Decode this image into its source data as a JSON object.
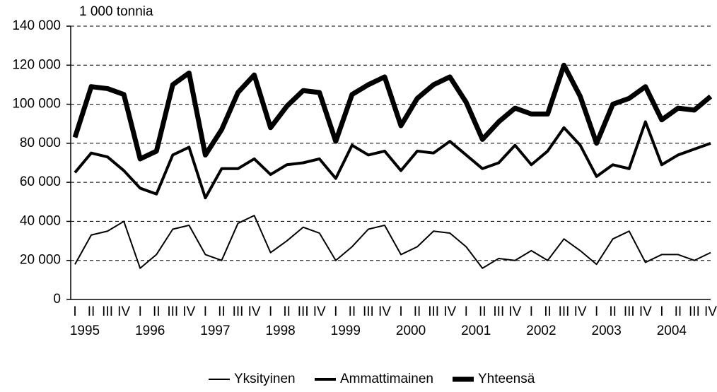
{
  "chart_data": {
    "type": "line",
    "y_axis_label": "1 000 tonnia",
    "categories": [
      "I",
      "II",
      "III",
      "IV",
      "I",
      "II",
      "III",
      "IV",
      "I",
      "II",
      "III",
      "IV",
      "I",
      "II",
      "III",
      "IV",
      "I",
      "II",
      "III",
      "IV",
      "I",
      "II",
      "III",
      "IV",
      "I",
      "II",
      "III",
      "IV",
      "I",
      "II",
      "III",
      "IV",
      "I",
      "II",
      "III",
      "IV",
      "I",
      "II",
      "III",
      "IV"
    ],
    "year_labels": [
      "1995",
      "1996",
      "1997",
      "1998",
      "1999",
      "2000",
      "2001",
      "2002",
      "2003",
      "2004"
    ],
    "ylim": [
      0,
      140000
    ],
    "yticks": [
      0,
      {
        "value": 20000,
        "label": "20 000"
      },
      {
        "value": 40000,
        "label": "40 000"
      },
      {
        "value": 60000,
        "label": "60 000"
      },
      {
        "value": 80000,
        "label": "80 000"
      },
      {
        "value": 100000,
        "label": "100 000"
      },
      {
        "value": 120000,
        "label": "120 000"
      },
      {
        "value": 140000,
        "label": "140 000"
      }
    ],
    "grid": true,
    "legend": "bottom",
    "series": [
      {
        "name": "Yksityinen",
        "color": "#000000",
        "width": 2,
        "values": [
          18000,
          33000,
          35000,
          40000,
          16000,
          23000,
          36000,
          38000,
          23000,
          20000,
          39000,
          43000,
          24000,
          30000,
          37000,
          34000,
          20000,
          27000,
          36000,
          38000,
          23000,
          27000,
          35000,
          34000,
          27000,
          16000,
          21000,
          20000,
          25000,
          20000,
          31000,
          25000,
          18000,
          31000,
          35000,
          19000,
          23000,
          23000,
          20000,
          24000
        ]
      },
      {
        "name": "Ammattimainen",
        "color": "#000000",
        "width": 4,
        "values": [
          65000,
          75000,
          73000,
          66000,
          57000,
          54000,
          74000,
          78000,
          52000,
          67000,
          67000,
          72000,
          64000,
          69000,
          70000,
          72000,
          62000,
          79000,
          74000,
          76000,
          66000,
          76000,
          75000,
          81000,
          74000,
          67000,
          70000,
          79000,
          69000,
          76000,
          88000,
          79000,
          63000,
          69000,
          67000,
          91000,
          69000,
          74000,
          77000,
          80000
        ]
      },
      {
        "name": "Yhteensä",
        "color": "#000000",
        "width": 7,
        "values": [
          83000,
          109000,
          108000,
          105000,
          72000,
          76000,
          110000,
          116000,
          74000,
          87000,
          106000,
          115000,
          88000,
          99000,
          107000,
          106000,
          81000,
          105000,
          110000,
          114000,
          89000,
          103000,
          110000,
          114000,
          101000,
          82000,
          91000,
          98000,
          95000,
          95000,
          120000,
          104000,
          80000,
          100000,
          103000,
          109000,
          92000,
          98000,
          97000,
          104000
        ]
      }
    ]
  }
}
